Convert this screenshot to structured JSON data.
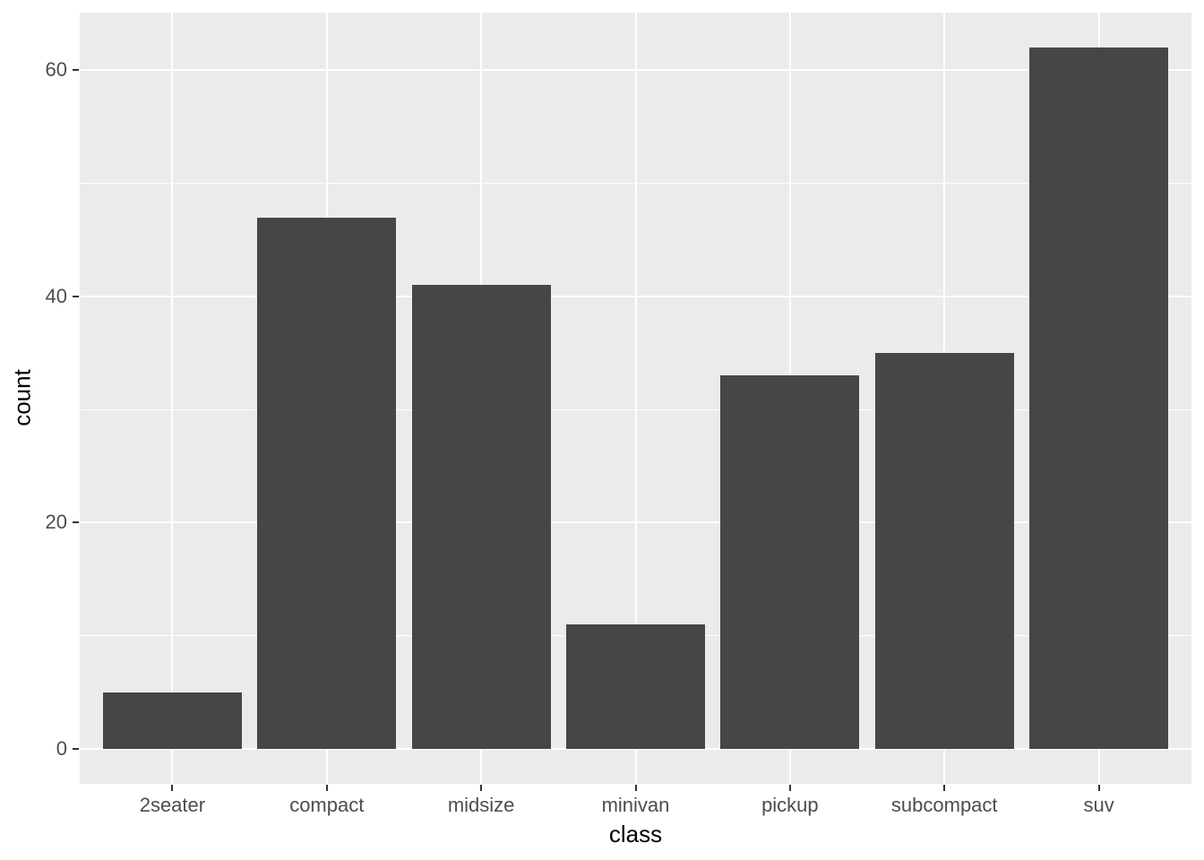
{
  "chart_data": {
    "type": "bar",
    "title": "",
    "xlabel": "class",
    "ylabel": "count",
    "categories": [
      "2seater",
      "compact",
      "midsize",
      "minivan",
      "pickup",
      "subcompact",
      "suv"
    ],
    "values": [
      5,
      47,
      41,
      11,
      33,
      35,
      62
    ],
    "ylim": [
      -3.1,
      65.1
    ],
    "y_major_ticks": [
      0,
      20,
      40,
      60
    ],
    "y_minor_ticks": [
      10,
      30,
      50
    ],
    "grid": "major-and-minor-horizontal, major-vertical-at-categories",
    "legend_position": "none",
    "style": {
      "bar_fill": "#464646",
      "panel_background": "#EBEBEB",
      "grid_color": "#FFFFFF",
      "tick_label_color": "#4D4D4D",
      "axis_title_color": "#000000",
      "tick_mark_color": "#333333",
      "figure_background": "#FFFFFF"
    }
  }
}
